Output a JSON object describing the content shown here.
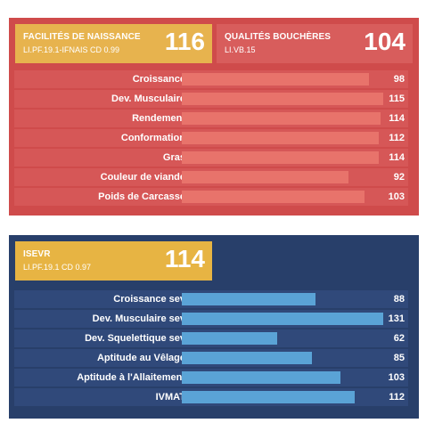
{
  "panels": {
    "red": {
      "card1": {
        "title": "FACILITÉS DE NAISSANCE",
        "code": "LI.PF.19.1-IFNAIS CD 0.99",
        "score": "116"
      },
      "card2": {
        "title": "QUALITÉS BOUCHÈRES",
        "code": "LI.VB.15",
        "score": "104"
      },
      "rows": [
        {
          "label": "Croissance",
          "value": "98",
          "fill": 0.92
        },
        {
          "label": "Dev. Musculaire",
          "value": "115",
          "fill": 0.99
        },
        {
          "label": "Rendement",
          "value": "114",
          "fill": 0.98
        },
        {
          "label": "Conformation",
          "value": "112",
          "fill": 0.97
        },
        {
          "label": "Gras",
          "value": "114",
          "fill": 0.97
        },
        {
          "label": "Couleur de viande",
          "value": "92",
          "fill": 0.82
        },
        {
          "label": "Poids de Carcasse",
          "value": "103",
          "fill": 0.9
        }
      ]
    },
    "blue": {
      "card1": {
        "title": "ISEVR",
        "code": "LI.PF.19.1 CD 0.97",
        "score": "114"
      },
      "rows": [
        {
          "label": "Croissance sev",
          "value": "88",
          "fill": 0.66
        },
        {
          "label": "Dev. Musculaire sev",
          "value": "131",
          "fill": 0.99
        },
        {
          "label": "Dev. Squelettique sev",
          "value": "62",
          "fill": 0.47
        },
        {
          "label": "Aptitude au Vêlage",
          "value": "85",
          "fill": 0.64
        },
        {
          "label": "Aptitude à l'Allaitement",
          "value": "103",
          "fill": 0.78
        },
        {
          "label": "IVMAT",
          "value": "112",
          "fill": 0.85
        }
      ]
    }
  }
}
